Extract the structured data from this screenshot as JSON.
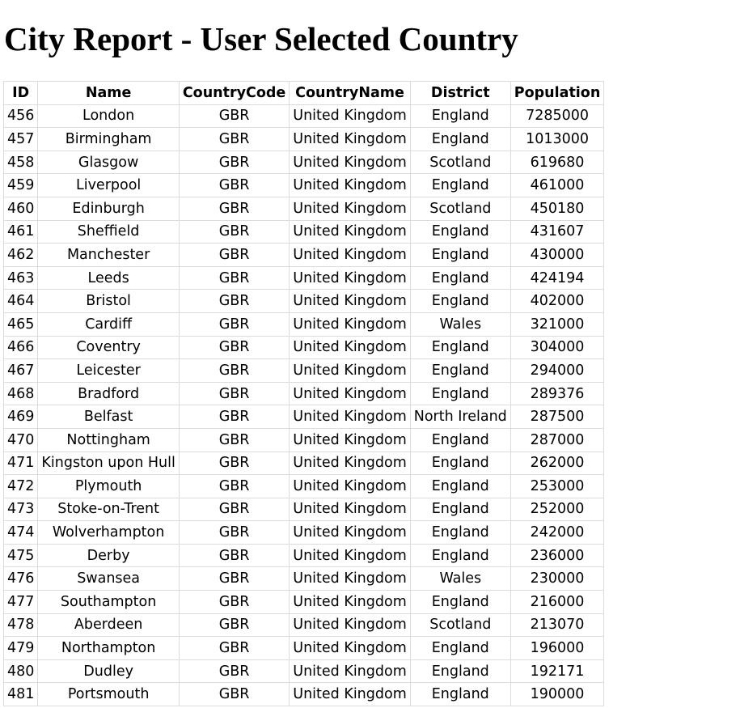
{
  "page": {
    "title": "City Report - User Selected Country"
  },
  "table": {
    "columns": [
      "ID",
      "Name",
      "CountryCode",
      "CountryName",
      "District",
      "Population"
    ],
    "rows": [
      [
        "456",
        "London",
        "GBR",
        "United Kingdom",
        "England",
        "7285000"
      ],
      [
        "457",
        "Birmingham",
        "GBR",
        "United Kingdom",
        "England",
        "1013000"
      ],
      [
        "458",
        "Glasgow",
        "GBR",
        "United Kingdom",
        "Scotland",
        "619680"
      ],
      [
        "459",
        "Liverpool",
        "GBR",
        "United Kingdom",
        "England",
        "461000"
      ],
      [
        "460",
        "Edinburgh",
        "GBR",
        "United Kingdom",
        "Scotland",
        "450180"
      ],
      [
        "461",
        "Sheffield",
        "GBR",
        "United Kingdom",
        "England",
        "431607"
      ],
      [
        "462",
        "Manchester",
        "GBR",
        "United Kingdom",
        "England",
        "430000"
      ],
      [
        "463",
        "Leeds",
        "GBR",
        "United Kingdom",
        "England",
        "424194"
      ],
      [
        "464",
        "Bristol",
        "GBR",
        "United Kingdom",
        "England",
        "402000"
      ],
      [
        "465",
        "Cardiff",
        "GBR",
        "United Kingdom",
        "Wales",
        "321000"
      ],
      [
        "466",
        "Coventry",
        "GBR",
        "United Kingdom",
        "England",
        "304000"
      ],
      [
        "467",
        "Leicester",
        "GBR",
        "United Kingdom",
        "England",
        "294000"
      ],
      [
        "468",
        "Bradford",
        "GBR",
        "United Kingdom",
        "England",
        "289376"
      ],
      [
        "469",
        "Belfast",
        "GBR",
        "United Kingdom",
        "North Ireland",
        "287500"
      ],
      [
        "470",
        "Nottingham",
        "GBR",
        "United Kingdom",
        "England",
        "287000"
      ],
      [
        "471",
        "Kingston upon Hull",
        "GBR",
        "United Kingdom",
        "England",
        "262000"
      ],
      [
        "472",
        "Plymouth",
        "GBR",
        "United Kingdom",
        "England",
        "253000"
      ],
      [
        "473",
        "Stoke-on-Trent",
        "GBR",
        "United Kingdom",
        "England",
        "252000"
      ],
      [
        "474",
        "Wolverhampton",
        "GBR",
        "United Kingdom",
        "England",
        "242000"
      ],
      [
        "475",
        "Derby",
        "GBR",
        "United Kingdom",
        "England",
        "236000"
      ],
      [
        "476",
        "Swansea",
        "GBR",
        "United Kingdom",
        "Wales",
        "230000"
      ],
      [
        "477",
        "Southampton",
        "GBR",
        "United Kingdom",
        "England",
        "216000"
      ],
      [
        "478",
        "Aberdeen",
        "GBR",
        "United Kingdom",
        "Scotland",
        "213070"
      ],
      [
        "479",
        "Northampton",
        "GBR",
        "United Kingdom",
        "England",
        "196000"
      ],
      [
        "480",
        "Dudley",
        "GBR",
        "United Kingdom",
        "England",
        "192171"
      ],
      [
        "481",
        "Portsmouth",
        "GBR",
        "United Kingdom",
        "England",
        "190000"
      ]
    ]
  }
}
